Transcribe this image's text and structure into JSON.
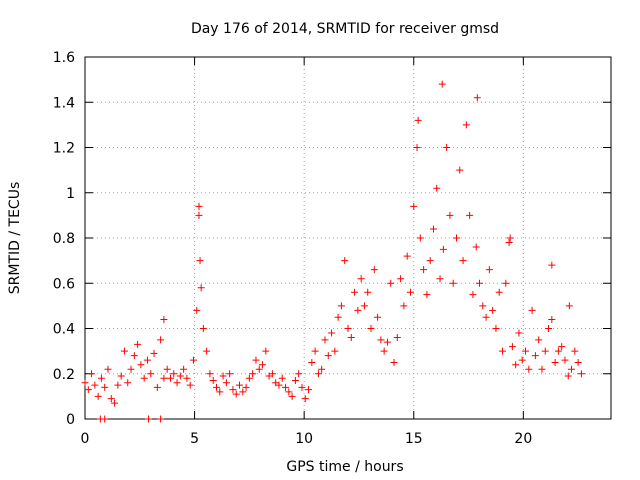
{
  "chart_data": {
    "type": "scatter",
    "title": "Day 176 of 2014, SRMTID for receiver gmsd",
    "xlabel": "GPS time / hours",
    "ylabel": "SRMTID / TECUs",
    "xlim": [
      0,
      24
    ],
    "ylim": [
      0,
      1.6
    ],
    "xticks": [
      "0",
      "5",
      "10",
      "15",
      "20"
    ],
    "yticks": [
      "0",
      "0.2",
      "0.4",
      "0.6",
      "0.8",
      "1",
      "1.2",
      "1.4",
      "1.6"
    ],
    "grid": true,
    "marker": "+",
    "color": "#ff0000",
    "series": [
      {
        "name": "SRMTID",
        "x": [
          0.0,
          0.15,
          0.3,
          0.45,
          0.6,
          0.75,
          0.9,
          1.05,
          1.2,
          1.35,
          1.5,
          1.65,
          1.8,
          1.95,
          2.1,
          2.25,
          2.4,
          2.55,
          2.7,
          2.85,
          3.0,
          3.15,
          3.3,
          3.45,
          3.6,
          3.75,
          3.9,
          4.05,
          4.2,
          4.35,
          4.5,
          4.65,
          4.8,
          4.95,
          5.1,
          5.2,
          5.25,
          5.3,
          5.4,
          5.55,
          5.7,
          5.85,
          6.0,
          6.15,
          6.3,
          6.45,
          6.6,
          6.75,
          6.9,
          7.05,
          7.2,
          7.35,
          7.5,
          7.65,
          7.8,
          7.95,
          8.1,
          8.25,
          8.4,
          8.55,
          8.7,
          8.85,
          9.0,
          9.15,
          9.3,
          9.45,
          9.6,
          9.75,
          9.9,
          10.05,
          10.2,
          10.35,
          10.5,
          10.65,
          10.8,
          10.95,
          11.1,
          11.25,
          11.4,
          11.55,
          11.7,
          11.85,
          12.0,
          12.15,
          12.3,
          12.45,
          12.6,
          12.75,
          12.9,
          13.05,
          13.2,
          13.35,
          13.5,
          13.65,
          13.8,
          13.95,
          14.1,
          14.25,
          14.4,
          14.55,
          14.7,
          14.85,
          15.0,
          15.15,
          15.3,
          15.45,
          15.6,
          15.75,
          15.9,
          16.05,
          16.2,
          16.35,
          16.5,
          16.65,
          16.8,
          16.95,
          17.1,
          17.25,
          17.4,
          17.55,
          17.7,
          17.85,
          18.0,
          18.15,
          18.3,
          18.45,
          18.6,
          18.75,
          18.9,
          19.05,
          19.2,
          19.35,
          19.5,
          19.65,
          19.8,
          19.95,
          20.1,
          20.25,
          20.4,
          20.55,
          20.7,
          20.85,
          21.0,
          21.15,
          21.3,
          21.45,
          21.6,
          21.75,
          21.9,
          22.05,
          22.2,
          22.35,
          22.5,
          22.65,
          0.7,
          0.9,
          2.9,
          3.45,
          3.6,
          5.2,
          16.3,
          17.9,
          15.2,
          19.4,
          21.3,
          22.1
        ],
        "y": [
          0.16,
          0.13,
          0.2,
          0.15,
          0.1,
          0.18,
          0.14,
          0.22,
          0.09,
          0.07,
          0.15,
          0.19,
          0.3,
          0.16,
          0.22,
          0.28,
          0.33,
          0.24,
          0.18,
          0.26,
          0.2,
          0.29,
          0.14,
          0.35,
          0.44,
          0.22,
          0.18,
          0.2,
          0.16,
          0.19,
          0.22,
          0.18,
          0.15,
          0.26,
          0.48,
          0.94,
          0.7,
          0.58,
          0.4,
          0.3,
          0.2,
          0.17,
          0.14,
          0.12,
          0.19,
          0.16,
          0.2,
          0.13,
          0.11,
          0.15,
          0.12,
          0.14,
          0.18,
          0.2,
          0.26,
          0.22,
          0.24,
          0.3,
          0.19,
          0.2,
          0.16,
          0.15,
          0.18,
          0.14,
          0.12,
          0.1,
          0.17,
          0.2,
          0.14,
          0.09,
          0.13,
          0.25,
          0.3,
          0.2,
          0.22,
          0.35,
          0.28,
          0.38,
          0.3,
          0.45,
          0.5,
          0.7,
          0.4,
          0.36,
          0.56,
          0.48,
          0.62,
          0.5,
          0.56,
          0.4,
          0.66,
          0.45,
          0.35,
          0.3,
          0.34,
          0.6,
          0.25,
          0.36,
          0.62,
          0.5,
          0.72,
          0.56,
          0.94,
          1.2,
          0.8,
          0.66,
          0.55,
          0.7,
          0.84,
          1.02,
          0.62,
          0.75,
          1.2,
          0.9,
          0.6,
          0.8,
          1.1,
          0.7,
          1.3,
          0.9,
          0.55,
          0.76,
          0.6,
          0.5,
          0.45,
          0.66,
          0.48,
          0.4,
          0.56,
          0.3,
          0.6,
          0.78,
          0.32,
          0.24,
          0.38,
          0.26,
          0.3,
          0.22,
          0.48,
          0.28,
          0.35,
          0.22,
          0.3,
          0.4,
          0.44,
          0.25,
          0.3,
          0.32,
          0.26,
          0.19,
          0.22,
          0.3,
          0.25,
          0.2,
          0.0,
          0.0,
          0.0,
          0.0,
          0.18,
          0.9,
          1.48,
          1.42,
          1.32,
          0.8,
          0.68,
          0.5
        ]
      }
    ]
  }
}
